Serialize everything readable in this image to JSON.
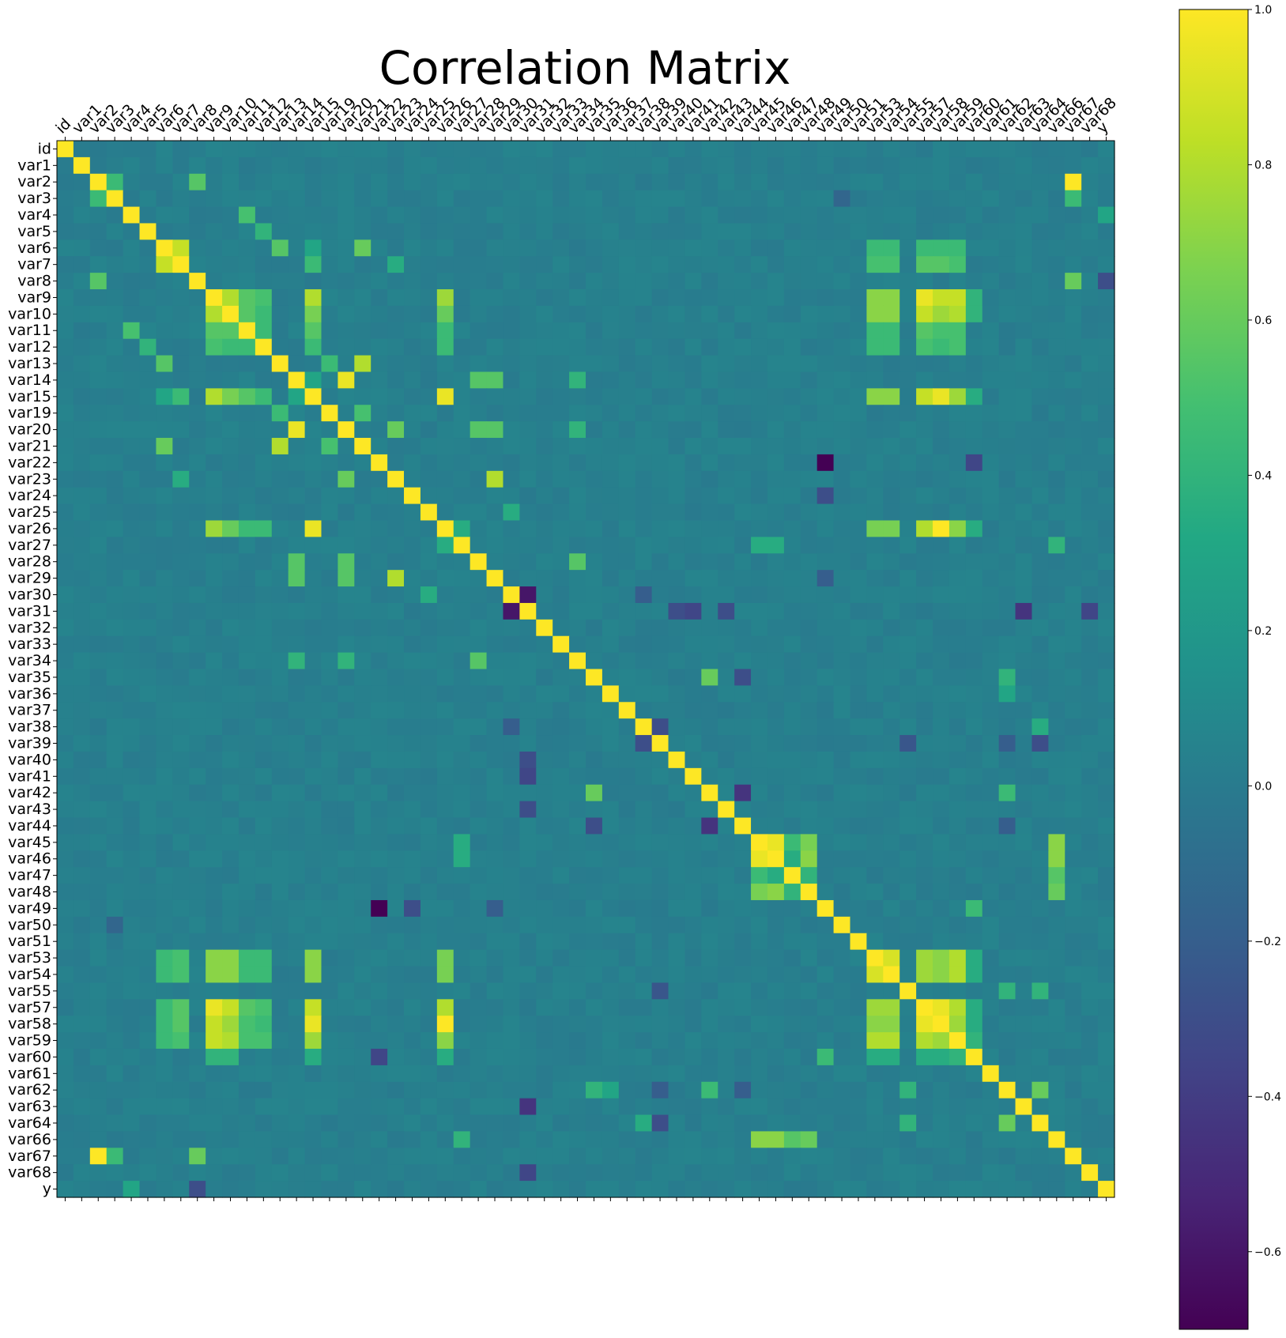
{
  "chart_data": {
    "type": "heatmap",
    "title": "Correlation Matrix",
    "labels": [
      "id",
      "var1",
      "var2",
      "var3",
      "var4",
      "var5",
      "var6",
      "var7",
      "var8",
      "var9",
      "var10",
      "var11",
      "var12",
      "var13",
      "var14",
      "var15",
      "var19",
      "var20",
      "var21",
      "var22",
      "var23",
      "var24",
      "var25",
      "var26",
      "var27",
      "var28",
      "var29",
      "var30",
      "var31",
      "var32",
      "var33",
      "var34",
      "var35",
      "var36",
      "var37",
      "var38",
      "var39",
      "var40",
      "var41",
      "var42",
      "var43",
      "var44",
      "var45",
      "var46",
      "var47",
      "var48",
      "var49",
      "var50",
      "var51",
      "var53",
      "var54",
      "var55",
      "var57",
      "var58",
      "var59",
      "var60",
      "var61",
      "var62",
      "var63",
      "var64",
      "var66",
      "var67",
      "var68",
      "y"
    ],
    "colormap": "viridis",
    "vmin": -0.7,
    "vmax": 1.0,
    "colorbar_ticks": [
      1.0,
      0.8,
      0.6,
      0.4,
      0.2,
      0.0,
      -0.2,
      -0.4,
      -0.6
    ],
    "colorbar_tick_labels": [
      "1.0",
      "0.8",
      "0.6",
      "0.4",
      "0.2",
      "0.0",
      "−0.2",
      "−0.4",
      "−0.6"
    ],
    "diagonal": 1.0,
    "background_value": 0.03,
    "correlations": [
      [
        "var2",
        "var67",
        1.0
      ],
      [
        "var2",
        "var3",
        0.45
      ],
      [
        "var2",
        "var8",
        0.55
      ],
      [
        "var3",
        "var67",
        0.45
      ],
      [
        "var8",
        "var67",
        0.6
      ],
      [
        "var4",
        "var11",
        0.5
      ],
      [
        "var4",
        "y",
        0.3
      ],
      [
        "var8",
        "y",
        -0.3
      ],
      [
        "var3",
        "var50",
        -0.15
      ],
      [
        "var5",
        "var12",
        0.4
      ],
      [
        "var6",
        "var7",
        0.85
      ],
      [
        "var6",
        "var13",
        0.55
      ],
      [
        "var6",
        "var21",
        0.6
      ],
      [
        "var6",
        "var15",
        0.3
      ],
      [
        "var7",
        "var15",
        0.45
      ],
      [
        "var7",
        "var23",
        0.35
      ],
      [
        "var9",
        "var10",
        0.8
      ],
      [
        "var9",
        "var11",
        0.55
      ],
      [
        "var9",
        "var12",
        0.5
      ],
      [
        "var9",
        "var15",
        0.8
      ],
      [
        "var9",
        "var26",
        0.75
      ],
      [
        "var10",
        "var11",
        0.55
      ],
      [
        "var10",
        "var12",
        0.45
      ],
      [
        "var10",
        "var15",
        0.65
      ],
      [
        "var10",
        "var26",
        0.6
      ],
      [
        "var11",
        "var12",
        0.45
      ],
      [
        "var11",
        "var15",
        0.55
      ],
      [
        "var11",
        "var26",
        0.45
      ],
      [
        "var12",
        "var26",
        0.45
      ],
      [
        "var12",
        "var15",
        0.45
      ],
      [
        "var13",
        "var21",
        0.8
      ],
      [
        "var13",
        "var19",
        0.45
      ],
      [
        "var14",
        "var20",
        0.95
      ],
      [
        "var14",
        "var15",
        0.3
      ],
      [
        "var14",
        "var28",
        0.55
      ],
      [
        "var14",
        "var29",
        0.55
      ],
      [
        "var14",
        "var34",
        0.4
      ],
      [
        "var15",
        "var26",
        0.95
      ],
      [
        "var19",
        "var21",
        0.5
      ],
      [
        "var20",
        "var28",
        0.55
      ],
      [
        "var20",
        "var29",
        0.55
      ],
      [
        "var20",
        "var23",
        0.6
      ],
      [
        "var20",
        "var34",
        0.4
      ],
      [
        "var23",
        "var29",
        0.8
      ],
      [
        "var28",
        "var34",
        0.55
      ],
      [
        "var25",
        "var30",
        0.35
      ],
      [
        "var26",
        "var27",
        0.35
      ],
      [
        "var22",
        "var49",
        -0.7
      ],
      [
        "var22",
        "var60",
        -0.35
      ],
      [
        "var24",
        "var49",
        -0.3
      ],
      [
        "var29",
        "var49",
        -0.2
      ],
      [
        "var9",
        "var53",
        0.7
      ],
      [
        "var9",
        "var54",
        0.7
      ],
      [
        "var9",
        "var57",
        0.95
      ],
      [
        "var9",
        "var58",
        0.85
      ],
      [
        "var9",
        "var59",
        0.85
      ],
      [
        "var9",
        "var60",
        0.4
      ],
      [
        "var10",
        "var53",
        0.7
      ],
      [
        "var10",
        "var54",
        0.7
      ],
      [
        "var10",
        "var57",
        0.85
      ],
      [
        "var10",
        "var58",
        0.75
      ],
      [
        "var10",
        "var59",
        0.8
      ],
      [
        "var10",
        "var60",
        0.4
      ],
      [
        "var11",
        "var53",
        0.45
      ],
      [
        "var11",
        "var54",
        0.45
      ],
      [
        "var11",
        "var57",
        0.55
      ],
      [
        "var11",
        "var58",
        0.5
      ],
      [
        "var11",
        "var59",
        0.5
      ],
      [
        "var12",
        "var53",
        0.45
      ],
      [
        "var12",
        "var54",
        0.45
      ],
      [
        "var12",
        "var57",
        0.5
      ],
      [
        "var12",
        "var58",
        0.45
      ],
      [
        "var12",
        "var59",
        0.5
      ],
      [
        "var15",
        "var53",
        0.7
      ],
      [
        "var15",
        "var54",
        0.7
      ],
      [
        "var15",
        "var57",
        0.85
      ],
      [
        "var15",
        "var58",
        0.95
      ],
      [
        "var15",
        "var59",
        0.75
      ],
      [
        "var15",
        "var60",
        0.35
      ],
      [
        "var26",
        "var53",
        0.65
      ],
      [
        "var26",
        "var54",
        0.65
      ],
      [
        "var26",
        "var57",
        0.8
      ],
      [
        "var26",
        "var58",
        1.0
      ],
      [
        "var26",
        "var59",
        0.7
      ],
      [
        "var26",
        "var60",
        0.35
      ],
      [
        "var6",
        "var53",
        0.45
      ],
      [
        "var6",
        "var54",
        0.45
      ],
      [
        "var6",
        "var57",
        0.45
      ],
      [
        "var6",
        "var58",
        0.45
      ],
      [
        "var6",
        "var59",
        0.45
      ],
      [
        "var7",
        "var53",
        0.5
      ],
      [
        "var7",
        "var54",
        0.5
      ],
      [
        "var7",
        "var57",
        0.55
      ],
      [
        "var7",
        "var58",
        0.55
      ],
      [
        "var7",
        "var59",
        0.5
      ],
      [
        "var53",
        "var54",
        0.9
      ],
      [
        "var53",
        "var57",
        0.75
      ],
      [
        "var53",
        "var58",
        0.7
      ],
      [
        "var53",
        "var59",
        0.8
      ],
      [
        "var53",
        "var60",
        0.35
      ],
      [
        "var54",
        "var57",
        0.75
      ],
      [
        "var54",
        "var58",
        0.7
      ],
      [
        "var54",
        "var59",
        0.8
      ],
      [
        "var54",
        "var60",
        0.35
      ],
      [
        "var57",
        "var58",
        0.95
      ],
      [
        "var57",
        "var59",
        0.8
      ],
      [
        "var57",
        "var60",
        0.35
      ],
      [
        "var58",
        "var59",
        0.75
      ],
      [
        "var58",
        "var60",
        0.35
      ],
      [
        "var59",
        "var60",
        0.4
      ],
      [
        "var49",
        "var60",
        0.45
      ],
      [
        "var30",
        "var31",
        -0.6
      ],
      [
        "var31",
        "var40",
        -0.3
      ],
      [
        "var31",
        "var41",
        -0.35
      ],
      [
        "var31",
        "var43",
        -0.3
      ],
      [
        "var31",
        "var63",
        -0.45
      ],
      [
        "var31",
        "var68",
        -0.35
      ],
      [
        "var30",
        "var38",
        -0.2
      ],
      [
        "var35",
        "var42",
        0.6
      ],
      [
        "var35",
        "var44",
        -0.3
      ],
      [
        "var35",
        "var62",
        0.4
      ],
      [
        "var36",
        "var62",
        0.3
      ],
      [
        "var38",
        "var39",
        -0.3
      ],
      [
        "var38",
        "var64",
        0.35
      ],
      [
        "var39",
        "var55",
        -0.25
      ],
      [
        "var39",
        "var64",
        -0.3
      ],
      [
        "var39",
        "var62",
        -0.2
      ],
      [
        "var42",
        "var44",
        -0.45
      ],
      [
        "var42",
        "var62",
        0.45
      ],
      [
        "var44",
        "var62",
        -0.2
      ],
      [
        "var55",
        "var62",
        0.4
      ],
      [
        "var55",
        "var64",
        0.4
      ],
      [
        "var62",
        "var64",
        0.6
      ],
      [
        "var45",
        "var46",
        0.95
      ],
      [
        "var45",
        "var47",
        0.45
      ],
      [
        "var45",
        "var48",
        0.65
      ],
      [
        "var46",
        "var47",
        0.35
      ],
      [
        "var46",
        "var48",
        0.7
      ],
      [
        "var47",
        "var48",
        0.4
      ],
      [
        "var45",
        "var66",
        0.7
      ],
      [
        "var46",
        "var66",
        0.7
      ],
      [
        "var47",
        "var66",
        0.55
      ],
      [
        "var48",
        "var66",
        0.6
      ],
      [
        "var27",
        "var45",
        0.35
      ],
      [
        "var27",
        "var46",
        0.35
      ],
      [
        "var27",
        "var66",
        0.4
      ]
    ]
  }
}
